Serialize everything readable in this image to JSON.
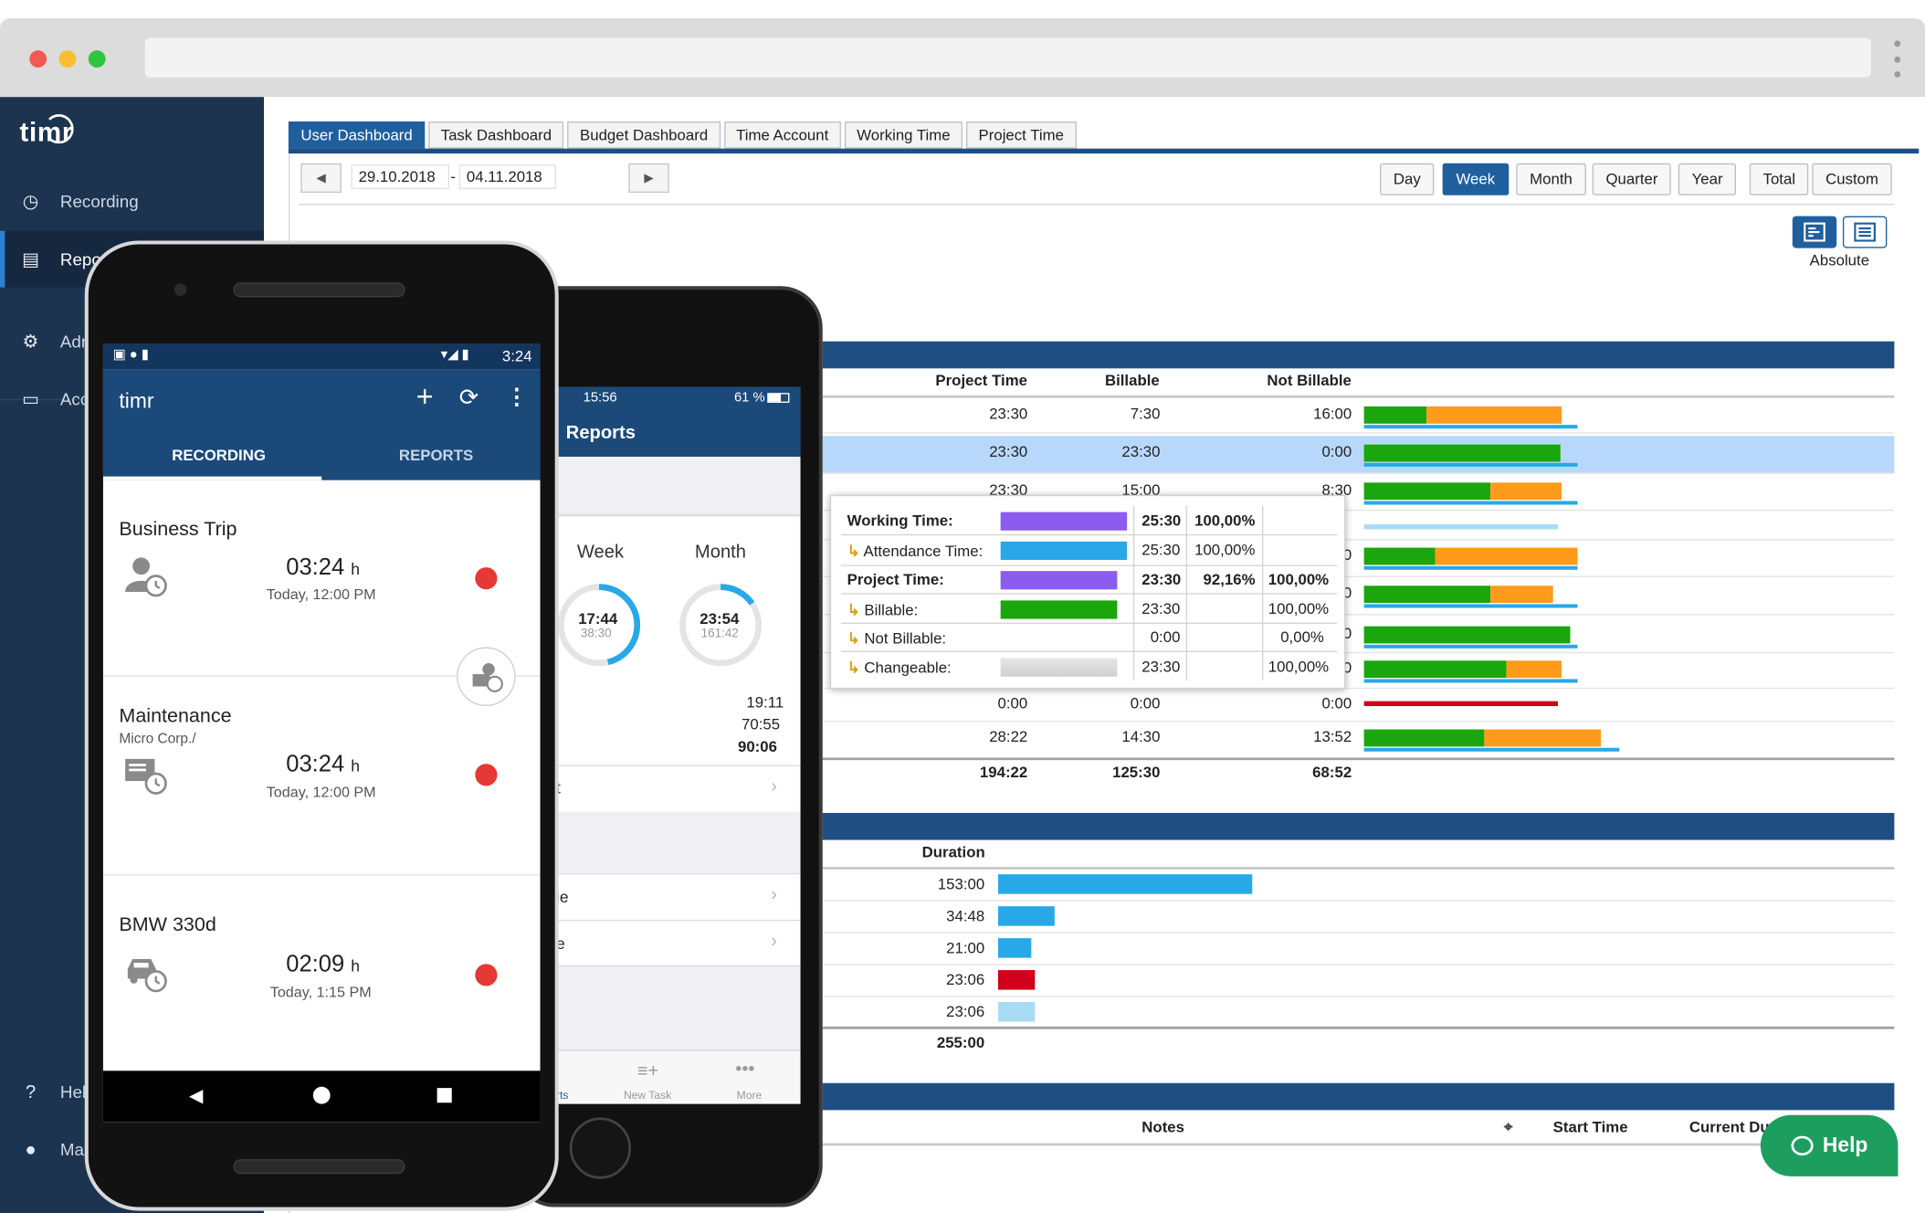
{
  "sidebar": {
    "logo": "timr",
    "items": [
      {
        "label": "Recording",
        "icon": "clock-icon"
      },
      {
        "label": "Reports",
        "icon": "report-icon"
      },
      {
        "label": "Administration",
        "icon": "gear-icon"
      },
      {
        "label": "Account",
        "icon": "card-icon"
      },
      {
        "label": "Help",
        "icon": "help-circle-icon"
      },
      {
        "label": "Max Mustermann",
        "icon": "user-icon"
      }
    ]
  },
  "tabs": [
    "User Dashboard",
    "Task Dashboard",
    "Budget Dashboard",
    "Time Account",
    "Working Time",
    "Project Time"
  ],
  "date_range": {
    "from": "29.10.2018",
    "separator": "-",
    "to": "04.11.2018"
  },
  "range_buttons": [
    "Day",
    "Week",
    "Month",
    "Quarter",
    "Year",
    "Total",
    "Custom"
  ],
  "view_mode_label": "Absolute",
  "project_table": {
    "headers": {
      "project_time": "Project Time",
      "billable": "Billable",
      "not_billable": "Not Billable"
    },
    "rows": [
      {
        "project_time": "23:30",
        "billable": "7:30",
        "not_billable": "16:00"
      },
      {
        "project_time": "23:30",
        "billable": "23:30",
        "not_billable": "0:00"
      },
      {
        "project_time": "23:30",
        "billable": "15:00",
        "not_billable": "8:30"
      },
      {
        "project_time": "",
        "billable": "",
        "not_billable": ""
      },
      {
        "project_time": "",
        "billable": "",
        "not_billable": "0"
      },
      {
        "project_time": "",
        "billable": "",
        "not_billable": "0"
      },
      {
        "project_time": "",
        "billable": "",
        "not_billable": "0"
      },
      {
        "project_time": "",
        "billable": "",
        "not_billable": "0"
      },
      {
        "project_time": "0:00",
        "billable": "0:00",
        "not_billable": "0:00"
      },
      {
        "project_time": "28:22",
        "billable": "14:30",
        "not_billable": "13:52"
      }
    ],
    "totals": {
      "project_time": "194:22",
      "billable": "125:30",
      "not_billable": "68:52"
    }
  },
  "duration_table": {
    "header": "Duration",
    "rows": [
      "153:00",
      "34:48",
      "21:00",
      "23:06",
      "23:06"
    ],
    "total": "255:00"
  },
  "notes_table": {
    "headers": [
      "Notes",
      "Start Time",
      "Current Du"
    ]
  },
  "tooltip": {
    "rows": [
      {
        "label": "Working Time:",
        "value": "25:30",
        "pct1": "100,00%",
        "pct2": ""
      },
      {
        "label": "Attendance Time:",
        "value": "25:30",
        "pct1": "100,00%",
        "pct2": ""
      },
      {
        "label": "Project Time:",
        "value": "23:30",
        "pct1": "92,16%",
        "pct2": "100,00%"
      },
      {
        "label": "Billable:",
        "value": "23:30",
        "pct1": "",
        "pct2": "100,00%"
      },
      {
        "label": "Not Billable:",
        "value": "0:00",
        "pct1": "",
        "pct2": "0,00%"
      },
      {
        "label": "Changeable:",
        "value": "23:30",
        "pct1": "",
        "pct2": "100,00%"
      }
    ]
  },
  "help_button": "Help",
  "android": {
    "status_time": "3:24",
    "app_title": "timr",
    "tabs": [
      "RECORDING",
      "REPORTS"
    ],
    "cards": [
      {
        "title": "Business Trip",
        "subtitle": "",
        "time": "03:24",
        "unit": "h",
        "date": "Today, 12:00 PM",
        "icon": "person-clock-icon"
      },
      {
        "title": "Maintenance",
        "subtitle": "Micro Corp./",
        "time": "03:24",
        "unit": "h",
        "date": "Today, 12:00 PM",
        "icon": "task-clock-icon"
      },
      {
        "title": "BMW 330d",
        "subtitle": "",
        "time": "02:09",
        "unit": "h",
        "date": "Today, 1:15 PM",
        "icon": "car-clock-icon"
      }
    ]
  },
  "iphone": {
    "status_time": "15:56",
    "battery": "61 %",
    "title": "Reports",
    "week_label": "Week",
    "month_label": "Month",
    "week_main": "17:44",
    "week_sub": "38:30",
    "month_main": "23:54",
    "month_sub": "161:42",
    "summary": [
      "19:11",
      "70:55",
      "90:06"
    ],
    "list_fragments": [
      "t",
      "ie",
      "e"
    ],
    "tabbar": [
      {
        "label": "rts"
      },
      {
        "label": "New Task"
      },
      {
        "label": "More"
      }
    ]
  },
  "colors": {
    "sidebar": "#1c3450",
    "accent": "#1f5f9e",
    "green": "#1aa60c",
    "orange": "#ff9b1a",
    "blue": "#29a8e8",
    "red": "#d0021b",
    "purple": "#8b5cf0"
  }
}
